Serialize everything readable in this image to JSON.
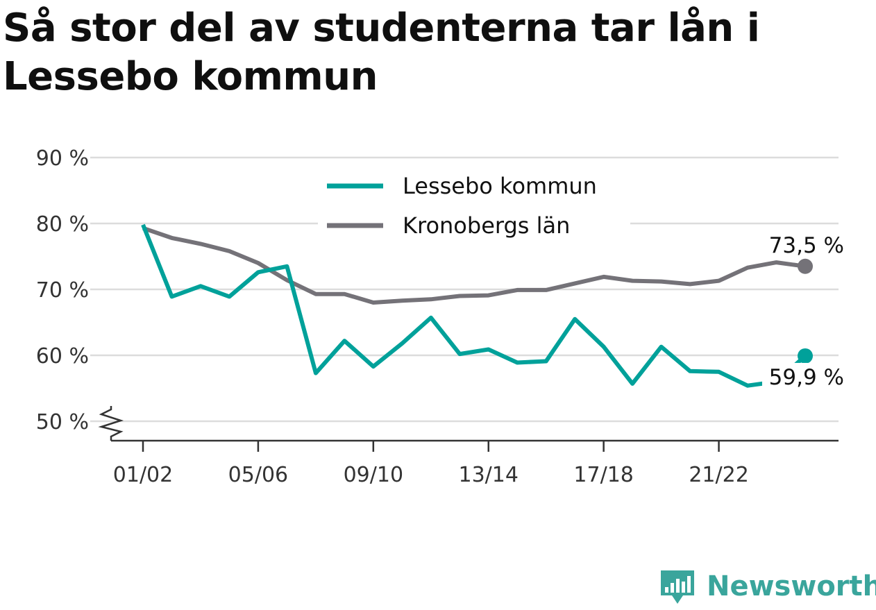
{
  "title": "Så stor del av studenterna tar lån i Lessebo kommun",
  "brand": {
    "name": "Newsworthy",
    "icon": "newsworthy-logo-icon",
    "color": "#3aa59c"
  },
  "chart_data": {
    "type": "line",
    "title": "Så stor del av studenterna tar lån i Lessebo kommun",
    "xlabel": "",
    "ylabel": "",
    "ylim": [
      50,
      90
    ],
    "y_ticks": [
      "50 %",
      "60 %",
      "70 %",
      "80 %",
      "90 %"
    ],
    "x_ticks": [
      "01/02",
      "05/06",
      "09/10",
      "13/14",
      "17/18",
      "21/22"
    ],
    "x_tick_positions": [
      0,
      4,
      8,
      12,
      16,
      20
    ],
    "grid": true,
    "legend_position": "top-center",
    "series": [
      {
        "name": "Lessebo kommun",
        "color": "#00a19a",
        "values": [
          79.8,
          68.9,
          70.5,
          68.9,
          72.6,
          73.5,
          57.3,
          62.2,
          58.3,
          61.8,
          65.7,
          60.2,
          60.9,
          58.9,
          59.1,
          65.5,
          61.3,
          55.7,
          61.3,
          57.6,
          57.5,
          55.4,
          56.0,
          59.9
        ],
        "end_label": "59,9 %"
      },
      {
        "name": "Kronobergs län",
        "color": "#747278",
        "values": [
          79.3,
          77.8,
          76.9,
          75.8,
          74.0,
          71.4,
          69.3,
          69.3,
          68.0,
          68.3,
          68.5,
          69.0,
          69.1,
          69.9,
          69.9,
          70.9,
          71.9,
          71.3,
          71.2,
          70.8,
          71.3,
          73.3,
          74.1,
          73.5
        ],
        "end_label": "73,5 %"
      }
    ]
  }
}
